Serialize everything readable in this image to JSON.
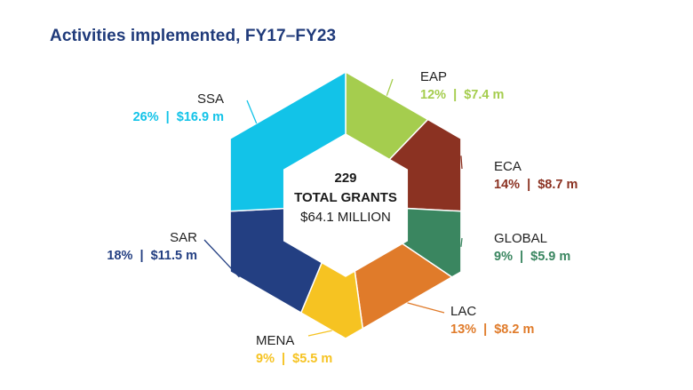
{
  "chart_data": {
    "type": "pie",
    "title": "Activities implemented, FY17–FY23",
    "center": {
      "count": "229",
      "count_label": "TOTAL GRANTS",
      "amount": "$64.1 MILLION"
    },
    "segments": [
      {
        "key": "eap",
        "name": "EAP",
        "percent": 12,
        "value_text": "12%  |  $7.4 m",
        "color": "#a5cd4e"
      },
      {
        "key": "eca",
        "name": "ECA",
        "percent": 14,
        "value_text": "14%  |  $8.7 m",
        "color": "#8b3222"
      },
      {
        "key": "global",
        "name": "GLOBAL",
        "percent": 9,
        "value_text": "9%  |  $5.9 m",
        "color": "#3a8660"
      },
      {
        "key": "lac",
        "name": "LAC",
        "percent": 13,
        "value_text": "13%  |  $8.2 m",
        "color": "#e07b2a"
      },
      {
        "key": "mena",
        "name": "MENA",
        "percent": 9,
        "value_text": "9%  |  $5.5 m",
        "color": "#f6c322"
      },
      {
        "key": "sar",
        "name": "SAR",
        "percent": 18,
        "value_text": "18%  |  $11.5 m",
        "color": "#233f82"
      },
      {
        "key": "ssa",
        "name": "SSA",
        "percent": 26,
        "value_text": "26%  |  $16.9 m",
        "color": "#12c3e8"
      }
    ]
  }
}
